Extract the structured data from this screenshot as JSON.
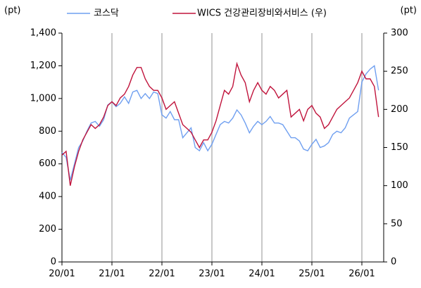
{
  "chart_data": {
    "type": "line",
    "axis_unit_left": "(pt)",
    "axis_unit_right": "(pt)",
    "categories": [
      "20/01",
      null,
      null,
      null,
      null,
      null,
      null,
      null,
      null,
      null,
      null,
      null,
      "21/01",
      null,
      null,
      null,
      null,
      null,
      null,
      null,
      null,
      null,
      null,
      null,
      "22/01",
      null,
      null,
      null,
      null,
      null,
      null,
      null,
      null,
      null,
      null,
      null,
      "23/01",
      null,
      null,
      null,
      null,
      null,
      null,
      null,
      null,
      null,
      null,
      null,
      "24/01",
      null,
      null,
      null,
      null,
      null,
      null,
      null,
      null,
      null,
      null,
      null,
      "25/01",
      null,
      null,
      null,
      null,
      null,
      null,
      null,
      null,
      null,
      null,
      null,
      "26/01",
      null,
      null,
      null,
      null
    ],
    "series": [
      {
        "name": "코스닥",
        "color": "#6f9ff0",
        "values": [
          670,
          640,
          500,
          600,
          700,
          740,
          800,
          850,
          860,
          830,
          870,
          960,
          980,
          950,
          970,
          1010,
          970,
          1040,
          1050,
          1000,
          1030,
          1000,
          1040,
          1030,
          900,
          880,
          920,
          870,
          870,
          760,
          790,
          820,
          700,
          680,
          730,
          680,
          720,
          780,
          840,
          860,
          850,
          880,
          930,
          900,
          850,
          790,
          830,
          860,
          840,
          860,
          890,
          850,
          850,
          840,
          800,
          760,
          760,
          740,
          690,
          680,
          720,
          750,
          700,
          710,
          730,
          780,
          800,
          790,
          820,
          880,
          900,
          920,
          1100,
          1150,
          1180,
          1200,
          1050
        ]
      },
      {
        "name": "WICS 건강관리장비와서비스 (우)",
        "color": "#c0143c",
        "axis": "y2",
        "values": [
          140,
          145,
          100,
          125,
          145,
          160,
          170,
          180,
          175,
          180,
          190,
          205,
          210,
          205,
          215,
          220,
          230,
          245,
          255,
          255,
          240,
          230,
          225,
          225,
          215,
          200,
          205,
          210,
          195,
          180,
          175,
          170,
          160,
          150,
          160,
          160,
          170,
          185,
          205,
          225,
          220,
          230,
          260,
          245,
          235,
          210,
          225,
          235,
          225,
          220,
          230,
          225,
          215,
          220,
          225,
          190,
          195,
          200,
          185,
          200,
          205,
          195,
          190,
          175,
          180,
          190,
          200,
          205,
          210,
          215,
          225,
          235,
          250,
          240,
          240,
          230,
          190
        ]
      }
    ],
    "ylim": [
      0,
      1400
    ],
    "yticks": [
      0,
      200,
      400,
      600,
      800,
      {
        "value": 1000,
        "label": "1,000"
      },
      {
        "value": 1200,
        "label": "1,200"
      },
      {
        "value": 1400,
        "label": "1,400"
      }
    ],
    "y2lim": [
      0,
      300
    ],
    "y2ticks": [
      0,
      50,
      100,
      150,
      200,
      250,
      300
    ],
    "xgrid": true
  }
}
